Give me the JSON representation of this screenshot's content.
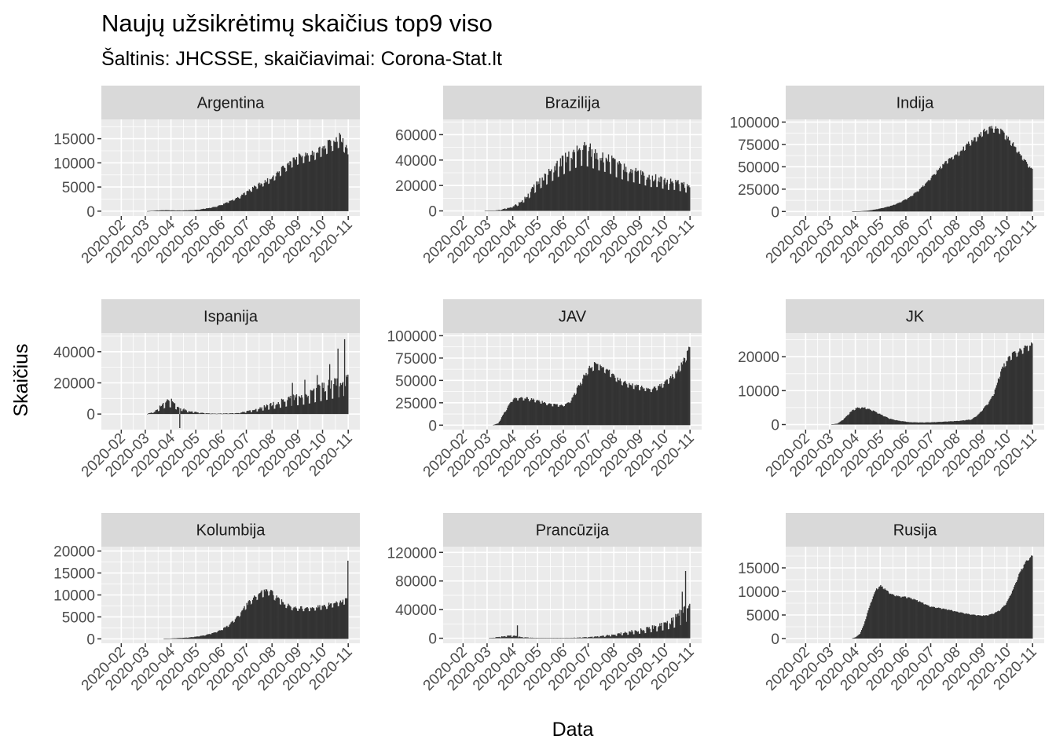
{
  "chart_data": {
    "type": "bar",
    "title": "Naujų užsikrėtimų skaičius top9 viso",
    "subtitle": "Šaltinis: JHCSSE, skaičiavimai: Corona-Stat.lt",
    "xlabel": "Data",
    "ylabel": "Skaičius",
    "x_tick_labels": [
      "2020-02",
      "2020-03",
      "2020-04",
      "2020-05",
      "2020-06",
      "2020-07",
      "2020-08",
      "2020-09",
      "2020-10",
      "2020-11"
    ],
    "x_range": [
      "2020-01-22",
      "2020-11-01"
    ],
    "bar_color": "#333333",
    "panel_background": "#ebebeb",
    "strip_background": "#d9d9d9",
    "facets": [
      {
        "name": "Argentina",
        "ylim": [
          -1000,
          19000
        ],
        "yticks": [
          0,
          5000,
          10000,
          15000
        ],
        "values": [
          [
            0,
            0
          ],
          [
            40,
            0
          ],
          [
            43,
            30
          ],
          [
            53,
            150
          ],
          [
            63,
            200
          ],
          [
            73,
            150
          ],
          [
            83,
            140
          ],
          [
            93,
            200
          ],
          [
            103,
            300
          ],
          [
            113,
            600
          ],
          [
            123,
            900
          ],
          [
            133,
            1500
          ],
          [
            143,
            2300
          ],
          [
            153,
            3000
          ],
          [
            163,
            4200
          ],
          [
            173,
            5200
          ],
          [
            183,
            6000
          ],
          [
            193,
            7000
          ],
          [
            203,
            8500
          ],
          [
            213,
            10000
          ],
          [
            223,
            11000
          ],
          [
            233,
            11500
          ],
          [
            243,
            12000
          ],
          [
            253,
            13000
          ],
          [
            263,
            14000
          ],
          [
            273,
            15000
          ],
          [
            280,
            13500
          ],
          [
            284,
            11500
          ]
        ],
        "noise": 0.12
      },
      {
        "name": "Brazilija",
        "ylim": [
          -4000,
          72000
        ],
        "yticks": [
          0,
          20000,
          40000,
          60000
        ],
        "values": [
          [
            0,
            0
          ],
          [
            35,
            0
          ],
          [
            45,
            200
          ],
          [
            55,
            800
          ],
          [
            65,
            2500
          ],
          [
            75,
            5000
          ],
          [
            85,
            10000
          ],
          [
            95,
            18000
          ],
          [
            105,
            25000
          ],
          [
            115,
            30000
          ],
          [
            125,
            36000
          ],
          [
            135,
            40000
          ],
          [
            145,
            45000
          ],
          [
            155,
            48000
          ],
          [
            165,
            45000
          ],
          [
            175,
            42000
          ],
          [
            185,
            40000
          ],
          [
            195,
            35000
          ],
          [
            205,
            32000
          ],
          [
            215,
            30000
          ],
          [
            225,
            28000
          ],
          [
            235,
            25000
          ],
          [
            245,
            25000
          ],
          [
            255,
            22000
          ],
          [
            265,
            22000
          ],
          [
            275,
            20000
          ],
          [
            284,
            18000
          ]
        ],
        "noise": 0.25
      },
      {
        "name": "Indija",
        "ylim": [
          -5000,
          103000
        ],
        "yticks": [
          0,
          25000,
          50000,
          75000,
          100000
        ],
        "values": [
          [
            0,
            0
          ],
          [
            65,
            0
          ],
          [
            75,
            300
          ],
          [
            85,
            1000
          ],
          [
            95,
            2500
          ],
          [
            105,
            4500
          ],
          [
            115,
            7000
          ],
          [
            125,
            11000
          ],
          [
            135,
            16000
          ],
          [
            145,
            23000
          ],
          [
            155,
            32000
          ],
          [
            165,
            42000
          ],
          [
            175,
            52000
          ],
          [
            185,
            60000
          ],
          [
            195,
            66000
          ],
          [
            205,
            75000
          ],
          [
            215,
            82000
          ],
          [
            225,
            90000
          ],
          [
            235,
            93000
          ],
          [
            243,
            92000
          ],
          [
            250,
            85000
          ],
          [
            260,
            75000
          ],
          [
            270,
            62000
          ],
          [
            280,
            50000
          ],
          [
            284,
            46000
          ]
        ],
        "noise": 0.05
      },
      {
        "name": "Ispanija",
        "ylim": [
          -10000,
          52000
        ],
        "yticks": [
          0,
          20000,
          40000
        ],
        "values": [
          [
            0,
            0
          ],
          [
            40,
            0
          ],
          [
            50,
            1500
          ],
          [
            60,
            6000
          ],
          [
            65,
            8500
          ],
          [
            70,
            7500
          ],
          [
            78,
            4500
          ],
          [
            90,
            1800
          ],
          [
            105,
            700
          ],
          [
            120,
            300
          ],
          [
            140,
            400
          ],
          [
            150,
            600
          ],
          [
            160,
            1500
          ],
          [
            170,
            2500
          ],
          [
            180,
            4000
          ],
          [
            190,
            5500
          ],
          [
            200,
            7000
          ],
          [
            210,
            9000
          ],
          [
            220,
            10000
          ],
          [
            230,
            11000
          ],
          [
            240,
            13000
          ],
          [
            250,
            15000
          ],
          [
            260,
            17000
          ],
          [
            270,
            19000
          ],
          [
            278,
            21000
          ],
          [
            284,
            20000
          ]
        ],
        "noise": 0.45,
        "spikes": [
          [
            80,
            -9000
          ],
          [
            216,
            20000
          ],
          [
            231,
            22000
          ],
          [
            246,
            25000
          ],
          [
            261,
            32000
          ],
          [
            271,
            42000
          ],
          [
            279,
            48000
          ]
        ]
      },
      {
        "name": "JAV",
        "ylim": [
          -5000,
          103000
        ],
        "yticks": [
          0,
          25000,
          50000,
          75000,
          100000
        ],
        "values": [
          [
            0,
            0
          ],
          [
            45,
            0
          ],
          [
            52,
            2000
          ],
          [
            60,
            15000
          ],
          [
            68,
            28000
          ],
          [
            75,
            30000
          ],
          [
            85,
            30000
          ],
          [
            100,
            27000
          ],
          [
            115,
            23000
          ],
          [
            130,
            22000
          ],
          [
            140,
            28000
          ],
          [
            150,
            45000
          ],
          [
            160,
            62000
          ],
          [
            170,
            68000
          ],
          [
            178,
            65000
          ],
          [
            188,
            58000
          ],
          [
            198,
            50000
          ],
          [
            210,
            45000
          ],
          [
            225,
            42000
          ],
          [
            238,
            40000
          ],
          [
            250,
            45000
          ],
          [
            260,
            52000
          ],
          [
            268,
            60000
          ],
          [
            276,
            72000
          ],
          [
            282,
            85000
          ],
          [
            284,
            92000
          ]
        ],
        "noise": 0.08
      },
      {
        "name": "JK",
        "ylim": [
          -1500,
          27000
        ],
        "yticks": [
          0,
          10000,
          20000
        ],
        "values": [
          [
            0,
            0
          ],
          [
            40,
            0
          ],
          [
            48,
            300
          ],
          [
            55,
            1500
          ],
          [
            65,
            4000
          ],
          [
            72,
            5000
          ],
          [
            80,
            5000
          ],
          [
            90,
            4200
          ],
          [
            100,
            3000
          ],
          [
            110,
            1800
          ],
          [
            120,
            1200
          ],
          [
            135,
            700
          ],
          [
            150,
            600
          ],
          [
            165,
            700
          ],
          [
            180,
            900
          ],
          [
            195,
            1100
          ],
          [
            210,
            1500
          ],
          [
            218,
            3000
          ],
          [
            225,
            5000
          ],
          [
            232,
            7000
          ],
          [
            238,
            10000
          ],
          [
            244,
            15000
          ],
          [
            250,
            18000
          ],
          [
            256,
            20000
          ],
          [
            262,
            21000
          ],
          [
            270,
            22000
          ],
          [
            278,
            23000
          ],
          [
            284,
            24000
          ]
        ],
        "noise": 0.06
      },
      {
        "name": "Kolumbija",
        "ylim": [
          -1000,
          21000
        ],
        "yticks": [
          0,
          5000,
          10000,
          15000,
          20000
        ],
        "values": [
          [
            0,
            0
          ],
          [
            60,
            0
          ],
          [
            70,
            100
          ],
          [
            80,
            200
          ],
          [
            90,
            300
          ],
          [
            100,
            500
          ],
          [
            110,
            800
          ],
          [
            120,
            1300
          ],
          [
            130,
            2000
          ],
          [
            140,
            3200
          ],
          [
            150,
            5000
          ],
          [
            160,
            7500
          ],
          [
            170,
            9500
          ],
          [
            180,
            10500
          ],
          [
            188,
            11000
          ],
          [
            196,
            9500
          ],
          [
            206,
            8000
          ],
          [
            216,
            7200
          ],
          [
            226,
            7000
          ],
          [
            236,
            7000
          ],
          [
            246,
            7200
          ],
          [
            256,
            7500
          ],
          [
            266,
            8000
          ],
          [
            276,
            8500
          ],
          [
            284,
            9000
          ]
        ],
        "noise": 0.1,
        "spikes": [
          [
            283,
            17800
          ]
        ]
      },
      {
        "name": "Prancūzija",
        "ylim": [
          -7000,
          128000
        ],
        "yticks": [
          0,
          40000,
          80000,
          120000
        ],
        "values": [
          [
            0,
            0
          ],
          [
            40,
            0
          ],
          [
            48,
            1000
          ],
          [
            56,
            2500
          ],
          [
            64,
            3500
          ],
          [
            72,
            3000
          ],
          [
            80,
            1500
          ],
          [
            90,
            800
          ],
          [
            100,
            500
          ],
          [
            110,
            400
          ],
          [
            120,
            500
          ],
          [
            140,
            600
          ],
          [
            160,
            1500
          ],
          [
            175,
            2500
          ],
          [
            190,
            4500
          ],
          [
            200,
            6500
          ],
          [
            210,
            8500
          ],
          [
            220,
            10000
          ],
          [
            230,
            12000
          ],
          [
            240,
            15000
          ],
          [
            250,
            18000
          ],
          [
            260,
            22000
          ],
          [
            270,
            28000
          ],
          [
            278,
            38000
          ],
          [
            284,
            40000
          ]
        ],
        "noise": 0.4,
        "spikes": [
          [
            75,
            18000
          ],
          [
            266,
            34000
          ],
          [
            271,
            40000
          ],
          [
            274,
            65000
          ],
          [
            278,
            94000
          ]
        ]
      },
      {
        "name": "Rusija",
        "ylim": [
          -1000,
          19500
        ],
        "yticks": [
          0,
          5000,
          10000,
          15000
        ],
        "values": [
          [
            0,
            0
          ],
          [
            65,
            0
          ],
          [
            70,
            300
          ],
          [
            75,
            1000
          ],
          [
            80,
            3000
          ],
          [
            85,
            6000
          ],
          [
            90,
            8500
          ],
          [
            95,
            10500
          ],
          [
            100,
            11200
          ],
          [
            105,
            10500
          ],
          [
            112,
            9500
          ],
          [
            120,
            9000
          ],
          [
            130,
            8800
          ],
          [
            140,
            8400
          ],
          [
            150,
            7600
          ],
          [
            160,
            6800
          ],
          [
            170,
            6500
          ],
          [
            180,
            6200
          ],
          [
            190,
            5800
          ],
          [
            200,
            5400
          ],
          [
            210,
            5100
          ],
          [
            220,
            4900
          ],
          [
            228,
            4900
          ],
          [
            236,
            5300
          ],
          [
            244,
            6000
          ],
          [
            252,
            7500
          ],
          [
            260,
            10500
          ],
          [
            268,
            14000
          ],
          [
            276,
            16500
          ],
          [
            284,
            17800
          ]
        ],
        "noise": 0.02
      }
    ]
  }
}
